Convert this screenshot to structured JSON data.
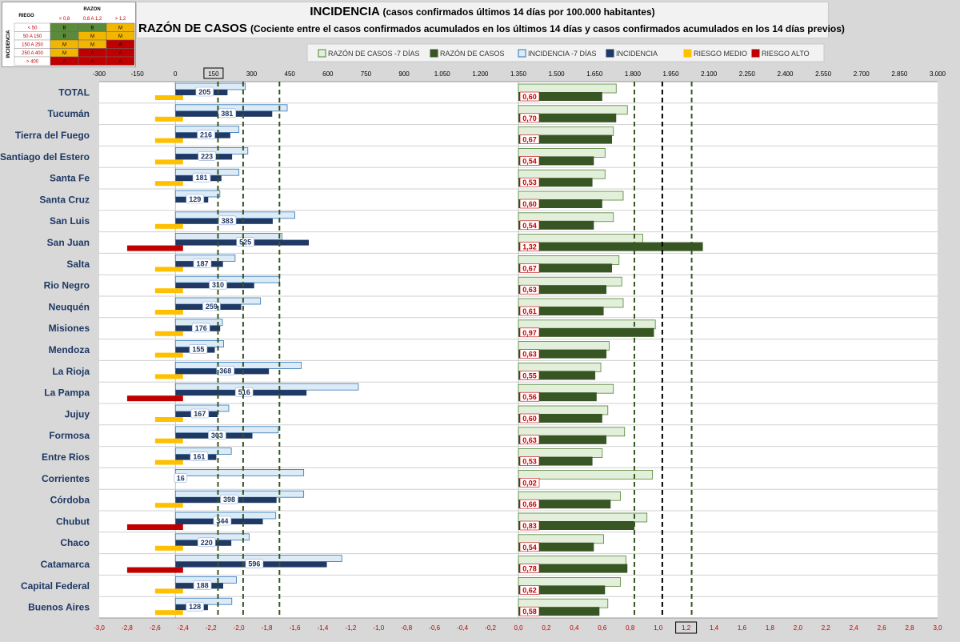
{
  "title_incidencia": "INCIDENCIA",
  "title_incidencia_sub": "(casos confirmados últimos 14 días por 100.000 habitantes)",
  "title_razon": "RAZÓN DE CASOS",
  "title_razon_sub": "(Cociente entre el casos confirmados acumulados en los últimos 14 días y casos confirmados acumulados en los 14 días previos)",
  "risk_table": {
    "corner": "RIEGO",
    "razon_header": "RAZON",
    "razon_cols": [
      "< 0,8",
      "0,8 A 1,2",
      "> 1,2"
    ],
    "incidencia_label": "INCIDENCIA",
    "rows": [
      {
        "label": "< 50",
        "cells": [
          "B",
          "B",
          "M"
        ],
        "colors": [
          "#5b8a3c",
          "#5b8a3c",
          "#f2b600"
        ]
      },
      {
        "label": "50 A 150",
        "cells": [
          "B",
          "M",
          "M"
        ],
        "colors": [
          "#5b8a3c",
          "#f2b600",
          "#f2b600"
        ]
      },
      {
        "label": "150 A 250",
        "cells": [
          "M",
          "M",
          "A"
        ],
        "colors": [
          "#f2b600",
          "#f2b600",
          "#c00000"
        ]
      },
      {
        "label": "250 A 400",
        "cells": [
          "M",
          "A",
          "A"
        ],
        "colors": [
          "#f2b600",
          "#c00000",
          "#c00000"
        ]
      },
      {
        "label": "> 400",
        "cells": [
          "A",
          "A",
          "A"
        ],
        "colors": [
          "#c00000",
          "#c00000",
          "#c00000"
        ]
      }
    ]
  },
  "legend": [
    {
      "label": "RAZÓN DE CASOS -7 DÍAS",
      "color": "#e2efda",
      "border": "#548235"
    },
    {
      "label": "RAZÓN DE CASOS",
      "color": "#375623",
      "border": "#375623"
    },
    {
      "label": "INCIDENCIA -7 DÍAS",
      "color": "#ddebf7",
      "border": "#2e75b6"
    },
    {
      "label": "INCIDENCIA",
      "color": "#1f3864",
      "border": "#1f3864"
    },
    {
      "label": "RIESGO MEDIO",
      "color": "#ffc000",
      "border": "#ffc000"
    },
    {
      "label": "RIESGO ALTO",
      "color": "#c00000",
      "border": "#c00000"
    }
  ],
  "chart_data": {
    "type": "bar",
    "orientation": "horizontal",
    "categories": [
      "TOTAL",
      "Tucumán",
      "Tierra del Fuego",
      "Santiago del Estero",
      "Santa Fe",
      "Santa Cruz",
      "San Luis",
      "San Juan",
      "Salta",
      "Rio Negro",
      "Neuquén",
      "Misiones",
      "Mendoza",
      "La Rioja",
      "La Pampa",
      "Jujuy",
      "Formosa",
      "Entre Rios",
      "Corrientes",
      "Córdoba",
      "Chubut",
      "Chaco",
      "Catamarca",
      "Capital Federal",
      "Buenos Aires"
    ],
    "top_axis": {
      "min": -300,
      "max": 3000,
      "step": 150,
      "labels": [
        "-300",
        "-150",
        "0",
        "150",
        "300",
        "450",
        "600",
        "750",
        "900",
        "1.050",
        "1.200",
        "1.350",
        "1.500",
        "1.650",
        "1.800",
        "1.950",
        "2.100",
        "2.250",
        "2.400",
        "2.550",
        "2.700",
        "2.850",
        "3.000"
      ],
      "highlight": "150"
    },
    "bottom_axis": {
      "min": -3.0,
      "max": 3.0,
      "step": 0.2,
      "labels": [
        "-3,0",
        "-2,8",
        "-2,6",
        "-2,4",
        "-2,2",
        "-2,0",
        "-1,8",
        "-1,6",
        "-1,4",
        "-1,2",
        "-1,0",
        "-0,8",
        "-0,6",
        "-0,4",
        "-0,2",
        "0,0",
        "0,2",
        "0,4",
        "0,6",
        "0,8",
        "1,0",
        "1,2",
        "1,4",
        "1,6",
        "1,8",
        "2,0",
        "2,2",
        "2,4",
        "2,6",
        "2,8",
        "3,0"
      ],
      "highlight": "1,2"
    },
    "incidencia": [
      205,
      381,
      216,
      223,
      181,
      129,
      383,
      525,
      187,
      310,
      259,
      176,
      155,
      368,
      516,
      167,
      303,
      161,
      16,
      398,
      344,
      220,
      596,
      188,
      128
    ],
    "incidencia_labels": [
      "205",
      "381",
      "216",
      "223",
      "181",
      "129",
      "383",
      "525",
      "187",
      "310",
      "259",
      "176",
      "155",
      "368",
      "516",
      "167",
      "303",
      "161",
      "16",
      "398",
      "344",
      "220",
      "596",
      "188",
      "128"
    ],
    "incidencia_7d": [
      275,
      440,
      250,
      285,
      250,
      175,
      470,
      420,
      235,
      410,
      335,
      185,
      190,
      495,
      720,
      210,
      405,
      220,
      505,
      505,
      395,
      290,
      655,
      240,
      222
    ],
    "razon": [
      0.6,
      0.7,
      0.67,
      0.54,
      0.53,
      0.6,
      0.54,
      1.32,
      0.67,
      0.63,
      0.61,
      0.97,
      0.63,
      0.55,
      0.56,
      0.6,
      0.63,
      0.53,
      0.02,
      0.66,
      0.83,
      0.54,
      0.78,
      0.62,
      0.58
    ],
    "razon_labels": [
      "0,60",
      "0,70",
      "0,67",
      "0,54",
      "0,53",
      "0,60",
      "0,54",
      "1,32",
      "0,67",
      "0,63",
      "0,61",
      "0,97",
      "0,63",
      "0,55",
      "0,56",
      "0,60",
      "0,63",
      "0,53",
      "0,02",
      "0,66",
      "0,83",
      "0,54",
      "0,78",
      "0,62",
      "0,58"
    ],
    "razon_7d": [
      0.7,
      0.78,
      0.68,
      0.62,
      0.62,
      0.75,
      0.68,
      0.89,
      0.72,
      0.74,
      0.75,
      0.98,
      0.65,
      0.59,
      0.68,
      0.64,
      0.76,
      0.6,
      0.96,
      0.73,
      0.92,
      0.61,
      0.77,
      0.73,
      0.64
    ],
    "riesgo": [
      "medio",
      "medio",
      "medio",
      "medio",
      "medio",
      "none",
      "medio",
      "alto",
      "medio",
      "medio",
      "medio",
      "medio",
      "medio",
      "medio",
      "alto",
      "medio",
      "medio",
      "medio",
      "none",
      "medio",
      "alto",
      "medio",
      "alto",
      "medio",
      "medio"
    ],
    "reference_lines_bottom": [
      {
        "value": -2.15,
        "style": "green-dashed"
      },
      {
        "value": -1.97,
        "style": "green-dashed"
      },
      {
        "value": -1.71,
        "style": "green-dashed"
      },
      {
        "value": 0.83,
        "style": "green-dashed"
      },
      {
        "value": 1.03,
        "style": "black-dashed"
      },
      {
        "value": 1.24,
        "style": "green-dashed"
      }
    ]
  }
}
